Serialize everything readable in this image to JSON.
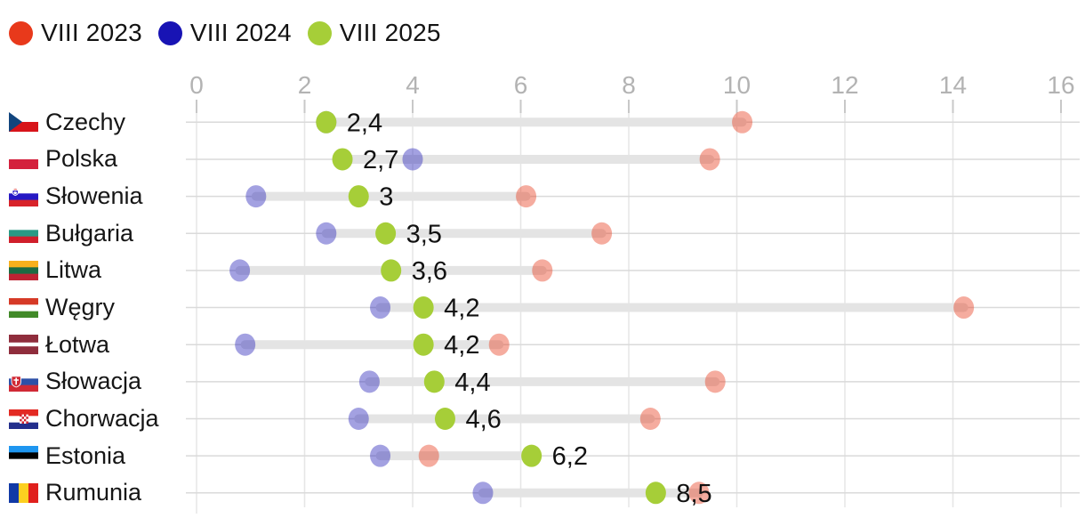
{
  "legend": {
    "items": [
      {
        "label": "VIII 2023",
        "color": "#e8391b"
      },
      {
        "label": "VIII 2024",
        "color": "#1813b4"
      },
      {
        "label": "VIII 2025",
        "color": "#a6ce38"
      }
    ]
  },
  "colors": {
    "red": "#e8391b",
    "blue": "#1813b4",
    "green": "#a6ce38",
    "range_bar": "#e4e4e4",
    "grid_line": "#e6e6e6",
    "row_line": "#dadada",
    "tick": "#c8c8c8",
    "axis_label": "#b3b3b3",
    "value_label": "#111111"
  },
  "chart_data": {
    "type": "dumbbell",
    "title": "",
    "legend_position": "top",
    "x_axis": {
      "min": 0,
      "max": 16,
      "ticks": [
        0,
        2,
        4,
        6,
        8,
        10,
        12,
        14,
        16
      ],
      "grid": true
    },
    "categories": [
      "Czechy",
      "Polska",
      "Słowenia",
      "Bułgaria",
      "Litwa",
      "Węgry",
      "Łotwa",
      "Słowacja",
      "Chorwacja",
      "Estonia",
      "Rumunia"
    ],
    "series": [
      {
        "name": "VIII 2023",
        "color": "#e8391b",
        "opacity": 0.42,
        "values": [
          10.1,
          9.5,
          6.1,
          7.5,
          6.4,
          14.2,
          5.6,
          9.6,
          8.4,
          4.3,
          9.3
        ]
      },
      {
        "name": "VIII 2024",
        "color": "#1813b4",
        "opacity": 0.4,
        "values": [
          2.4,
          4.0,
          1.1,
          2.4,
          0.8,
          3.4,
          0.9,
          3.2,
          3.0,
          3.4,
          5.3
        ]
      },
      {
        "name": "VIII 2025",
        "color": "#a6ce38",
        "opacity": 1,
        "values": [
          2.4,
          2.7,
          3.0,
          3.5,
          3.6,
          4.2,
          4.2,
          4.4,
          4.6,
          6.2,
          8.5
        ],
        "data_labels": [
          "2,4",
          "2,7",
          "3",
          "3,5",
          "3,6",
          "4,2",
          "4,2",
          "4,4",
          "4,6",
          "6,2",
          "8,5"
        ]
      }
    ]
  },
  "flags": [
    {
      "country": "Czechy",
      "type": "czech",
      "colors": [
        "#ffffff",
        "#d7141a",
        "#11457e"
      ]
    },
    {
      "country": "Polska",
      "type": "h",
      "stripes": [
        [
          "#ffffff",
          0.5
        ],
        [
          "#d4213d",
          0.5
        ]
      ]
    },
    {
      "country": "Słowenia",
      "type": "h",
      "stripes": [
        [
          "#ffffff",
          0.333
        ],
        [
          "#2618c4",
          0.333
        ],
        [
          "#d8232a",
          0.334
        ]
      ],
      "emblem": "slovenia"
    },
    {
      "country": "Bułgaria",
      "type": "h",
      "stripes": [
        [
          "#ffffff",
          0.333
        ],
        [
          "#2a9a85",
          0.333
        ],
        [
          "#d01f2b",
          0.334
        ]
      ]
    },
    {
      "country": "Litwa",
      "type": "h",
      "stripes": [
        [
          "#f8b01c",
          0.333
        ],
        [
          "#1d6b43",
          0.333
        ],
        [
          "#bf2333",
          0.334
        ]
      ]
    },
    {
      "country": "Węgry",
      "type": "h",
      "stripes": [
        [
          "#d63a27",
          0.333
        ],
        [
          "#ffffff",
          0.333
        ],
        [
          "#418a28",
          0.334
        ]
      ]
    },
    {
      "country": "Łotwa",
      "type": "h",
      "stripes": [
        [
          "#8f2d3c",
          0.4
        ],
        [
          "#ffffff",
          0.2
        ],
        [
          "#8f2d3c",
          0.4
        ]
      ]
    },
    {
      "country": "Słowacja",
      "type": "h",
      "stripes": [
        [
          "#ffffff",
          0.333
        ],
        [
          "#2d50a7",
          0.333
        ],
        [
          "#d02935",
          0.334
        ]
      ],
      "emblem": "slovakia"
    },
    {
      "country": "Chorwacja",
      "type": "h",
      "stripes": [
        [
          "#e32a23",
          0.333
        ],
        [
          "#ffffff",
          0.333
        ],
        [
          "#232e8c",
          0.334
        ]
      ],
      "emblem": "croatia"
    },
    {
      "country": "Estonia",
      "type": "h",
      "stripes": [
        [
          "#1e96f0",
          0.333
        ],
        [
          "#000000",
          0.333
        ],
        [
          "#ffffff",
          0.334
        ]
      ]
    },
    {
      "country": "Rumunia",
      "type": "v",
      "stripes": [
        [
          "#1139a6",
          0.333
        ],
        [
          "#fcd020",
          0.333
        ],
        [
          "#e0201d",
          0.334
        ]
      ]
    }
  ]
}
